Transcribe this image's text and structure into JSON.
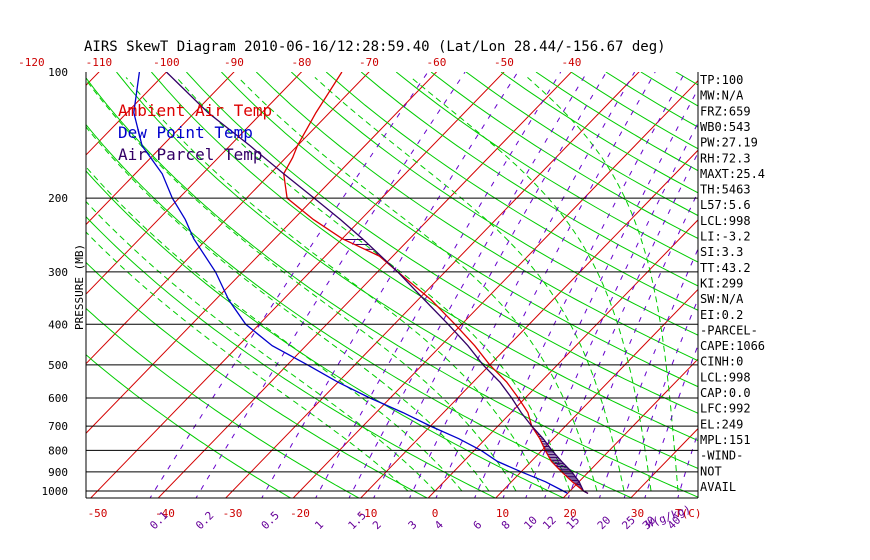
{
  "chart_data": {
    "type": "skewt",
    "title": "AIRS SkewT Diagram 2010-06-16/12:28:59.40 (Lat/Lon 28.44/-156.67 deg)",
    "ylabel": "PRESSURE (MB)",
    "pressure_ticks": [
      "100",
      "200",
      "300",
      "400",
      "500",
      "600",
      "700",
      "800",
      "900",
      "1000"
    ],
    "pressure_values": [
      100,
      200,
      300,
      400,
      500,
      600,
      700,
      800,
      900,
      1000
    ],
    "top_temp_ticks": [
      "-120",
      "-110",
      "-100",
      "-90",
      "-80",
      "-70",
      "-60",
      "-50",
      "-40"
    ],
    "top_temp_values": [
      -120,
      -110,
      -100,
      -90,
      -80,
      -70,
      -60,
      -50,
      -40
    ],
    "bottom_temp_ticks": [
      "-50",
      "-40",
      "-30",
      "-20",
      "-10",
      "0",
      "10",
      "20",
      "30",
      "T(C)"
    ],
    "bottom_temp_values": [
      -50,
      -40,
      -30,
      -20,
      -10,
      0,
      10,
      20,
      30
    ],
    "mixing_ratio_ticks": [
      "0.1",
      "0.2",
      "0.5",
      "1",
      "1.5",
      "2",
      "3",
      "4",
      "6",
      "8",
      "10",
      "12",
      "15",
      "20",
      "25",
      "30",
      "40",
      "W(g/kg)"
    ],
    "mixing_ratio_values": [
      0.1,
      0.2,
      0.5,
      1,
      1.5,
      2,
      3,
      4,
      6,
      8,
      10,
      12,
      15,
      20,
      25,
      30,
      40
    ],
    "legend": [
      {
        "label": "Ambient Air Temp",
        "color": "#dd0000"
      },
      {
        "label": "Dew Point Temp",
        "color": "#0000cc"
      },
      {
        "label": "Air Parcel Temp",
        "color": "#330066"
      }
    ],
    "series": [
      {
        "name": "Ambient Air Temp",
        "color": "#dd0000",
        "p": [
          1013,
          1000,
          950,
          900,
          850,
          800,
          750,
          700,
          650,
          600,
          550,
          500,
          450,
          400,
          350,
          300,
          275,
          250,
          225,
          200,
          175,
          160,
          150,
          125,
          100
        ],
        "t": [
          23,
          22,
          19,
          16,
          13,
          10.5,
          8,
          5,
          2.5,
          -1,
          -5,
          -10,
          -15,
          -21,
          -28,
          -37,
          -42,
          -50,
          -57,
          -64,
          -68,
          -69,
          -70,
          -72,
          -74
        ]
      },
      {
        "name": "Dew Point Temp",
        "color": "#0000cc",
        "p": [
          1013,
          1000,
          950,
          900,
          850,
          800,
          750,
          700,
          650,
          600,
          550,
          500,
          450,
          400,
          350,
          300,
          250,
          225,
          200,
          175,
          150,
          125,
          100
        ],
        "t": [
          20,
          19,
          15,
          10,
          5,
          1,
          -4,
          -10,
          -16,
          -23,
          -30,
          -37,
          -45,
          -52,
          -58,
          -64,
          -72,
          -76,
          -81,
          -86,
          -93,
          -99,
          -104
        ]
      },
      {
        "name": "Air Parcel Temp",
        "color": "#330066",
        "p": [
          1013,
          1000,
          950,
          900,
          850,
          800,
          750,
          700,
          650,
          600,
          550,
          500,
          450,
          400,
          350,
          300,
          250,
          225,
          200,
          175,
          150,
          125,
          100
        ],
        "t": [
          23,
          22,
          20,
          17.5,
          14.5,
          11.5,
          8.5,
          5,
          1.5,
          -2,
          -6,
          -11,
          -16,
          -22,
          -29,
          -37,
          -47,
          -53,
          -60,
          -68,
          -77,
          -88,
          -100
        ]
      }
    ],
    "isotherms_c": [
      -190,
      -180,
      -170,
      -160,
      -150,
      -140,
      -130,
      -120,
      -110,
      -100,
      -90,
      -80,
      -70,
      -60,
      -50,
      -40,
      -30,
      -20,
      -10,
      0,
      10,
      20,
      30,
      40,
      50
    ],
    "dry_adiabats_k": [
      250,
      260,
      270,
      280,
      290,
      300,
      310,
      320,
      330,
      340,
      350,
      360,
      370,
      380,
      390,
      400,
      410,
      420,
      430,
      440,
      450,
      460,
      470,
      480,
      490,
      500,
      520,
      540,
      560,
      580,
      600
    ],
    "moist_adiabats_c": [
      -4,
      0,
      4,
      8,
      12,
      16,
      20,
      24,
      28,
      32,
      36
    ],
    "grid": true
  },
  "info_panel": [
    "TP:100",
    "MW:N/A",
    "FRZ:659",
    "WB0:543",
    "PW:27.19",
    "RH:72.3",
    "MAXT:25.4",
    "TH:5463",
    "L57:5.6",
    "LCL:998",
    "LI:-3.2",
    "SI:3.3",
    "TT:43.2",
    "KI:299",
    "SW:N/A",
    "EI:0.2",
    "-PARCEL-",
    "CAPE:1066",
    "CINH:0",
    "LCL:998",
    "CAP:0.0",
    "LFC:992",
    "EL:249",
    "MPL:151",
    "-WIND-",
    "NOT",
    "AVAIL"
  ]
}
